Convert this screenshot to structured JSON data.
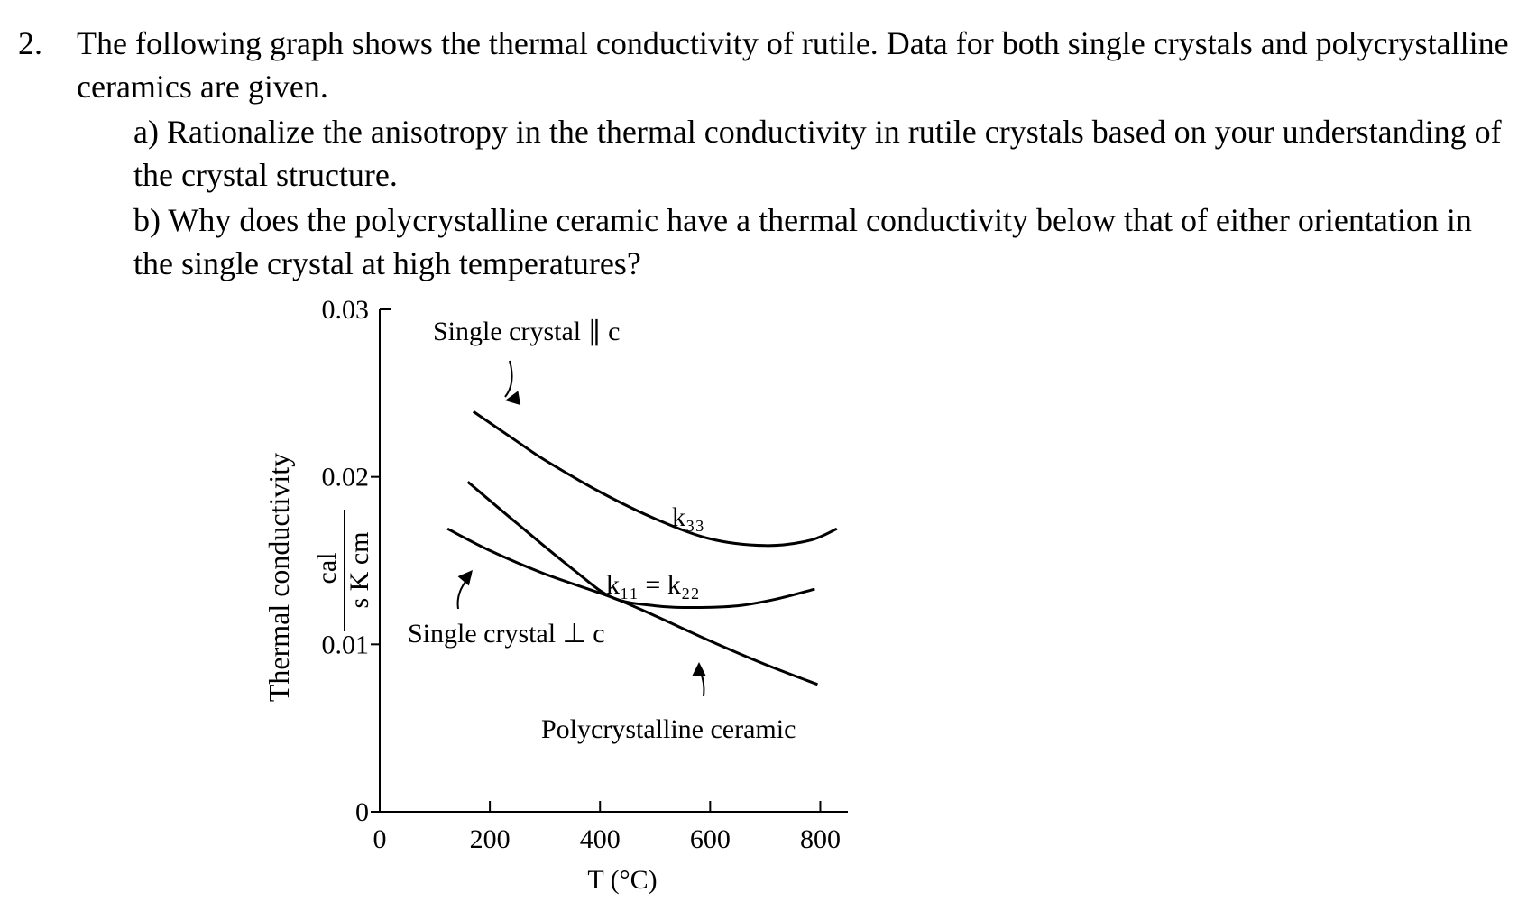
{
  "question": {
    "number": "2.",
    "text": "The following graph shows the thermal conductivity of rutile.  Data for both single crystals and polycrystalline ceramics are given.",
    "parts": [
      "a) Rationalize the anisotropy in the thermal conductivity in rutile crystals based on your understanding of the crystal structure.",
      "b) Why does the polycrystalline ceramic have a thermal conductivity below that of either orientation in the single crystal at high temperatures?"
    ]
  },
  "chart_data": {
    "type": "line",
    "y_label": "Thermal conductivity",
    "y_unit_numerator": "cal",
    "y_unit_denominator": "s K cm",
    "x_label": "T (°C)",
    "xlim": [
      0,
      850
    ],
    "xticks": [
      0,
      200,
      400,
      600,
      800
    ],
    "ylim": [
      0,
      0.03
    ],
    "yticks": [
      0,
      0.01,
      0.02,
      0.03
    ],
    "series": [
      {
        "color": "#000000",
        "x": [
          170,
          250,
          300,
          400,
          500,
          600,
          700,
          780,
          830
        ],
        "values": [
          0.0239,
          0.0221,
          0.021,
          0.0191,
          0.0175,
          0.0163,
          0.0159,
          0.0162,
          0.0169
        ]
      },
      {
        "color": "#000000",
        "x": [
          160,
          250,
          350,
          422,
          500,
          570,
          650,
          720,
          790
        ],
        "values": [
          0.0197,
          0.0172,
          0.0145,
          0.0128,
          0.0123,
          0.0122,
          0.0123,
          0.0127,
          0.0133
        ]
      },
      {
        "color": "#000000",
        "x": [
          123,
          200,
          300,
          422,
          500,
          600,
          700,
          795
        ],
        "values": [
          0.0169,
          0.0156,
          0.0142,
          0.0128,
          0.0117,
          0.0102,
          0.0088,
          0.0076
        ]
      }
    ],
    "annotations": [
      "Single crystal ∥ c",
      "k₃₃",
      "k₁₁ = k₂₂",
      "Single crystal ⊥ c",
      "Polycrystalline ceramic"
    ]
  }
}
